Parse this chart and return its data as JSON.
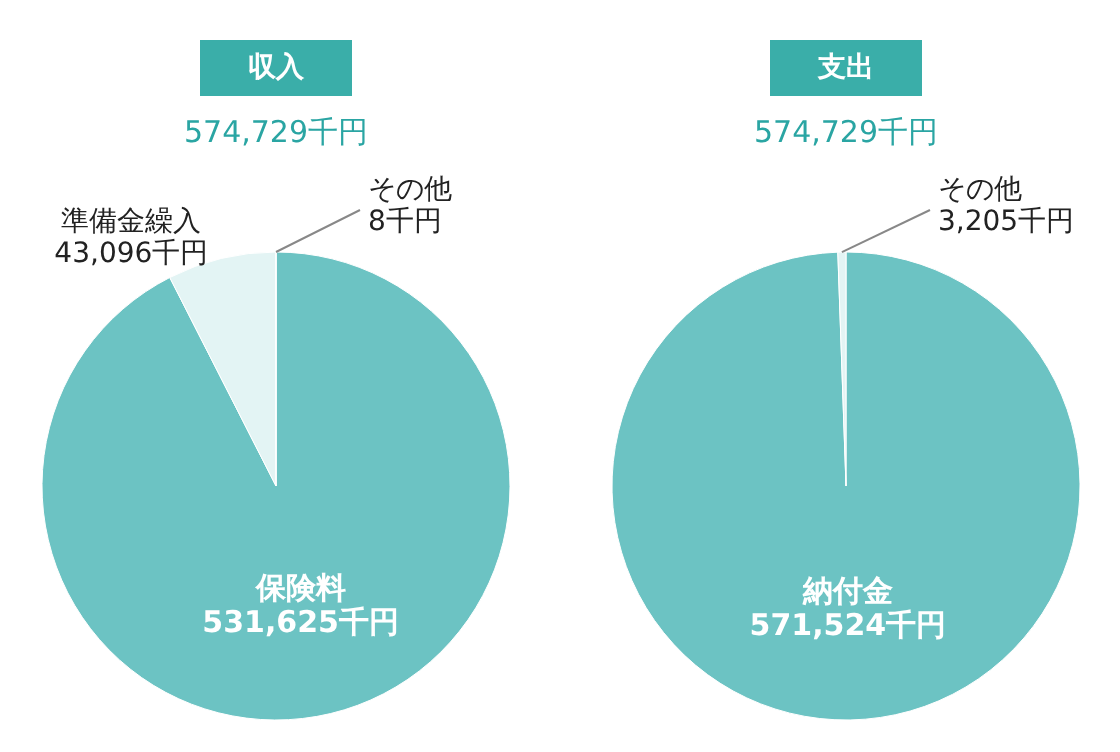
{
  "chart_data": [
    {
      "type": "pie",
      "title": "収入",
      "subtitle": "574,729千円",
      "categories": [
        "保険料",
        "準備金繰入",
        "その他"
      ],
      "values": [
        531625,
        43096,
        8
      ],
      "value_labels": [
        "531,625千円",
        "43,096千円",
        "8千円"
      ],
      "colors": [
        "#6cc3c3",
        "#e3f4f4",
        "#999999"
      ]
    },
    {
      "type": "pie",
      "title": "支出",
      "subtitle": "574,729千円",
      "categories": [
        "納付金",
        "その他"
      ],
      "values": [
        571524,
        3205
      ],
      "value_labels": [
        "571,524千円",
        "3,205千円"
      ],
      "colors": [
        "#6cc3c3",
        "#e3f4f4"
      ]
    }
  ]
}
